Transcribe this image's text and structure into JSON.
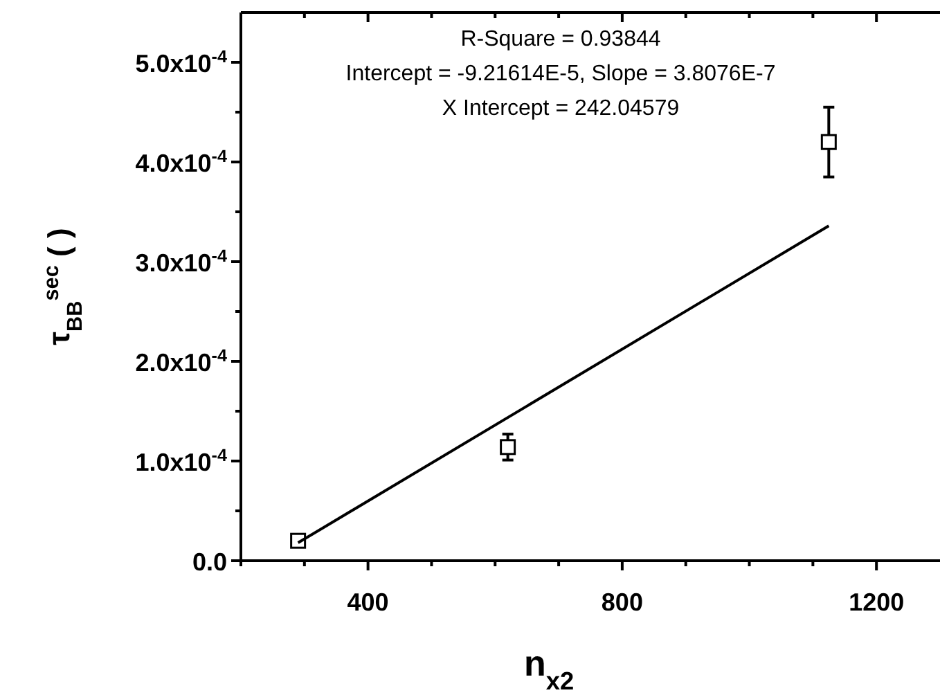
{
  "chart_data": {
    "type": "scatter",
    "xlabel": "n$_{x2}$",
    "ylabel": "τ$_{BB}$$^{sec}$ ( )",
    "annotations": [
      "R-Square = 0.93844",
      "Intercept = -9.21614E-5, Slope = 3.8076E-7",
      "X Intercept = 242.04579"
    ],
    "xlim": [
      200,
      1300
    ],
    "ylim": [
      0,
      0.00055
    ],
    "xticks": [
      {
        "value": 200,
        "label": null
      },
      {
        "value": 300,
        "label": null
      },
      400,
      {
        "value": 500,
        "label": null
      },
      {
        "value": 600,
        "label": null
      },
      {
        "value": 700,
        "label": null
      },
      800,
      {
        "value": 900,
        "label": null
      },
      {
        "value": 1000,
        "label": null
      },
      {
        "value": 1100,
        "label": null
      },
      1200
    ],
    "yticks": [
      {
        "value": 0,
        "label": "0.0"
      },
      {
        "value": 5e-05,
        "label": null
      },
      {
        "value": 0.0001,
        "label": "1.0x10$^{-4}$"
      },
      {
        "value": 0.00015,
        "label": null
      },
      {
        "value": 0.0002,
        "label": "2.0x10$^{-4}$"
      },
      {
        "value": 0.00025,
        "label": null
      },
      {
        "value": 0.0003,
        "label": "3.0x10$^{-4}$"
      },
      {
        "value": 0.00035,
        "label": null
      },
      {
        "value": 0.0004,
        "label": "4.0x10$^{-4}$"
      },
      {
        "value": 0.00045,
        "label": null
      },
      {
        "value": 0.0005,
        "label": "5.0x10$^{-4}$"
      }
    ],
    "grid": false,
    "series": [
      {
        "color": "#000000",
        "marker": "square",
        "x": [
          290,
          620,
          1125
        ],
        "values": [
          2e-05,
          0.000114,
          0.00042
        ],
        "errors": [
          3e-06,
          1.3e-05,
          3.5e-05
        ]
      },
      {
        "type": "line",
        "color": "#000000",
        "marker": "none",
        "line_style": "solid",
        "x": [
          290,
          1125
        ],
        "values": [
          1.8e-05,
          0.000336
        ]
      }
    ]
  }
}
